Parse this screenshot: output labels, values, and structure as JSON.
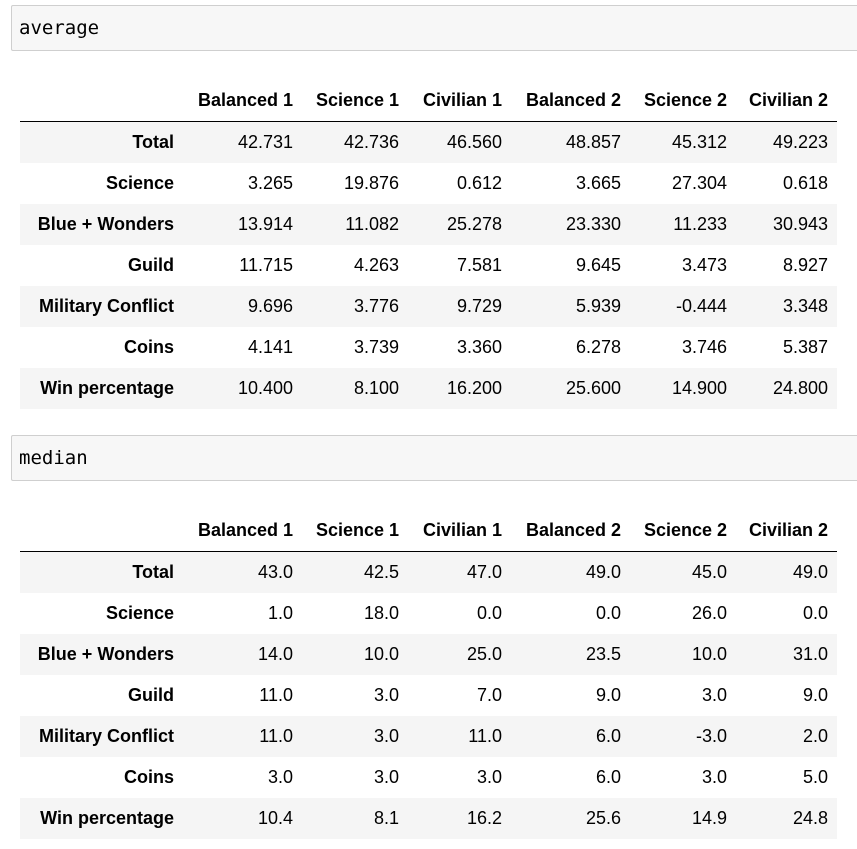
{
  "cells": [
    {
      "code": "average",
      "columns": [
        "",
        "Balanced 1",
        "Science 1",
        "Civilian 1",
        "Balanced 2",
        "Science 2",
        "Civilian 2"
      ],
      "rows": [
        {
          "label": "Total",
          "values": [
            "42.731",
            "42.736",
            "46.560",
            "48.857",
            "45.312",
            "49.223"
          ]
        },
        {
          "label": "Science",
          "values": [
            "3.265",
            "19.876",
            "0.612",
            "3.665",
            "27.304",
            "0.618"
          ]
        },
        {
          "label": "Blue + Wonders",
          "values": [
            "13.914",
            "11.082",
            "25.278",
            "23.330",
            "11.233",
            "30.943"
          ]
        },
        {
          "label": "Guild",
          "values": [
            "11.715",
            "4.263",
            "7.581",
            "9.645",
            "3.473",
            "8.927"
          ]
        },
        {
          "label": "Military Conflict",
          "values": [
            "9.696",
            "3.776",
            "9.729",
            "5.939",
            "-0.444",
            "3.348"
          ]
        },
        {
          "label": "Coins",
          "values": [
            "4.141",
            "3.739",
            "3.360",
            "6.278",
            "3.746",
            "5.387"
          ]
        },
        {
          "label": "Win percentage",
          "values": [
            "10.400",
            "8.100",
            "16.200",
            "25.600",
            "14.900",
            "24.800"
          ]
        }
      ]
    },
    {
      "code": "median",
      "columns": [
        "",
        "Balanced 1",
        "Science 1",
        "Civilian 1",
        "Balanced 2",
        "Science 2",
        "Civilian 2"
      ],
      "rows": [
        {
          "label": "Total",
          "values": [
            "43.0",
            "42.5",
            "47.0",
            "49.0",
            "45.0",
            "49.0"
          ]
        },
        {
          "label": "Science",
          "values": [
            "1.0",
            "18.0",
            "0.0",
            "0.0",
            "26.0",
            "0.0"
          ]
        },
        {
          "label": "Blue + Wonders",
          "values": [
            "14.0",
            "10.0",
            "25.0",
            "23.5",
            "10.0",
            "31.0"
          ]
        },
        {
          "label": "Guild",
          "values": [
            "11.0",
            "3.0",
            "7.0",
            "9.0",
            "3.0",
            "9.0"
          ]
        },
        {
          "label": "Military Conflict",
          "values": [
            "11.0",
            "3.0",
            "11.0",
            "6.0",
            "-3.0",
            "2.0"
          ]
        },
        {
          "label": "Coins",
          "values": [
            "3.0",
            "3.0",
            "3.0",
            "6.0",
            "3.0",
            "5.0"
          ]
        },
        {
          "label": "Win percentage",
          "values": [
            "10.4",
            "8.1",
            "16.2",
            "25.6",
            "14.9",
            "24.8"
          ]
        }
      ]
    }
  ]
}
